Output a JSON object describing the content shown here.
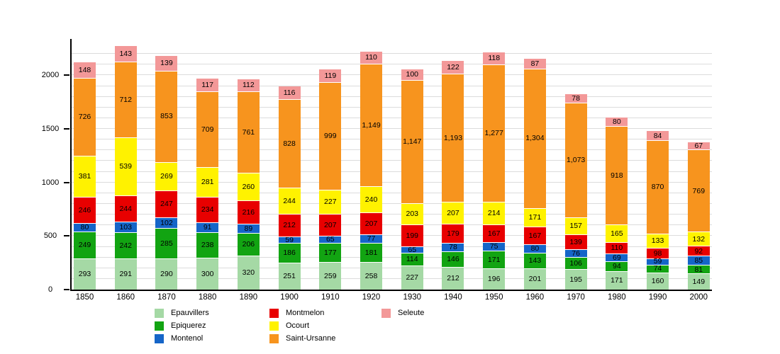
{
  "chart_data": {
    "type": "bar",
    "stacked": true,
    "title": "",
    "xlabel": "",
    "ylabel": "",
    "categories": [
      "1850",
      "1860",
      "1870",
      "1880",
      "1890",
      "1900",
      "1910",
      "1920",
      "1930",
      "1940",
      "1950",
      "1960",
      "1970",
      "1980",
      "1990",
      "2000"
    ],
    "series": [
      {
        "name": "Epauvillers",
        "color": "#A5D9A5",
        "values": [
          293,
          291,
          290,
          300,
          320,
          251,
          259,
          258,
          227,
          212,
          196,
          201,
          195,
          171,
          160,
          149
        ]
      },
      {
        "name": "Epiquerez",
        "color": "#12A412",
        "values": [
          249,
          242,
          285,
          238,
          206,
          186,
          177,
          181,
          114,
          146,
          171,
          143,
          106,
          94,
          74,
          81
        ]
      },
      {
        "name": "Montenol",
        "color": "#1565C8",
        "values": [
          80,
          103,
          102,
          91,
          89,
          59,
          65,
          77,
          65,
          78,
          75,
          80,
          76,
          69,
          59,
          85
        ]
      },
      {
        "name": "Montmelon",
        "color": "#E80000",
        "values": [
          246,
          244,
          247,
          234,
          216,
          212,
          207,
          207,
          199,
          179,
          167,
          167,
          139,
          110,
          98,
          92
        ]
      },
      {
        "name": "Ocourt",
        "color": "#FFF200",
        "values": [
          381,
          539,
          269,
          281,
          260,
          244,
          227,
          240,
          203,
          207,
          214,
          171,
          157,
          165,
          133,
          132
        ]
      },
      {
        "name": "Saint-Ursanne",
        "color": "#F7941E",
        "values": [
          726,
          712,
          853,
          709,
          761,
          828,
          999,
          1149,
          1147,
          1193,
          1277,
          1304,
          1073,
          918,
          870,
          769
        ]
      },
      {
        "name": "Seleute",
        "color": "#F39898",
        "values": [
          148,
          143,
          139,
          117,
          112,
          116,
          119,
          110,
          100,
          122,
          118,
          87,
          78,
          80,
          84,
          67
        ]
      }
    ],
    "ylim": [
      0,
      2340
    ],
    "yticks": [
      0,
      500,
      1000,
      1500,
      2000
    ],
    "grid": {
      "on": true,
      "step": 100,
      "color": "#DCDCDC"
    },
    "value_labels": "inside-segments, thousands with comma",
    "legend": {
      "position": "bottom",
      "columns": [
        [
          "Epauvillers",
          "Epiquerez",
          "Montenol"
        ],
        [
          "Montmelon",
          "Ocourt",
          "Saint-Ursanne"
        ],
        [
          "Seleute"
        ]
      ]
    },
    "axis_color": "#000000",
    "background_color": "#FFFFFF"
  }
}
